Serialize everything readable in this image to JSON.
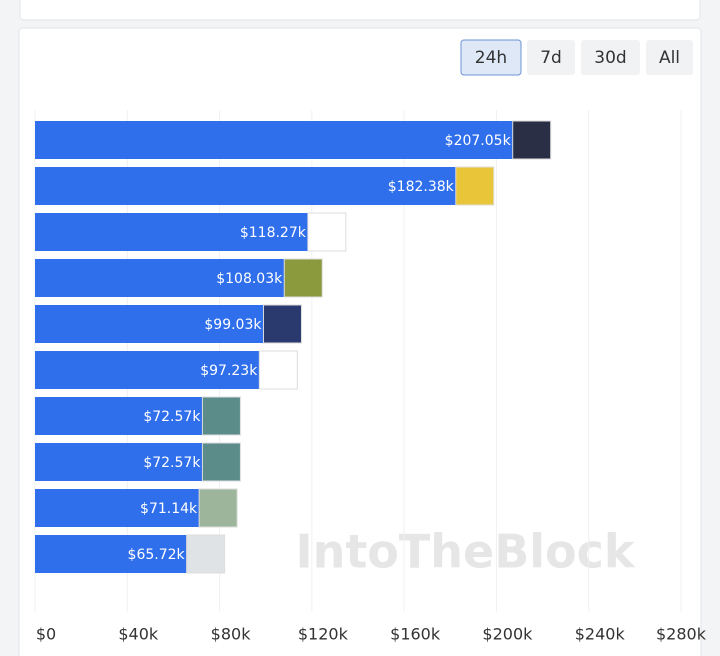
{
  "buttons": {
    "labels": [
      "24h",
      "7d",
      "30d",
      "All"
    ],
    "active": "24h"
  },
  "watermark": "IntoTheBlock",
  "chart_data": {
    "type": "bar",
    "orientation": "horizontal",
    "categories": [
      null,
      null,
      null,
      null,
      null,
      null,
      null,
      null,
      null,
      null
    ],
    "values": [
      207050,
      182380,
      118270,
      108030,
      99030,
      97230,
      72570,
      72570,
      71140,
      65720
    ],
    "value_labels": [
      "$207.05k",
      "$182.38k",
      "$118.27k",
      "$108.03k",
      "$99.03k",
      "$97.23k",
      "$72.57k",
      "$72.57k",
      "$71.14k",
      "$65.72k"
    ],
    "color": "#2f6fec",
    "xlim": [
      0,
      280000
    ],
    "xticks": [
      {
        "value": 0,
        "label": "$0"
      },
      {
        "value": 40000,
        "label": "$40k"
      },
      {
        "value": 80000,
        "label": "$80k"
      },
      {
        "value": 120000,
        "label": "$120k"
      },
      {
        "value": 160000,
        "label": "$160k"
      },
      {
        "value": 200000,
        "label": "$200k"
      },
      {
        "value": 240000,
        "label": "$240k"
      },
      {
        "value": 280000,
        "label": "$280k"
      }
    ],
    "grid": true
  }
}
